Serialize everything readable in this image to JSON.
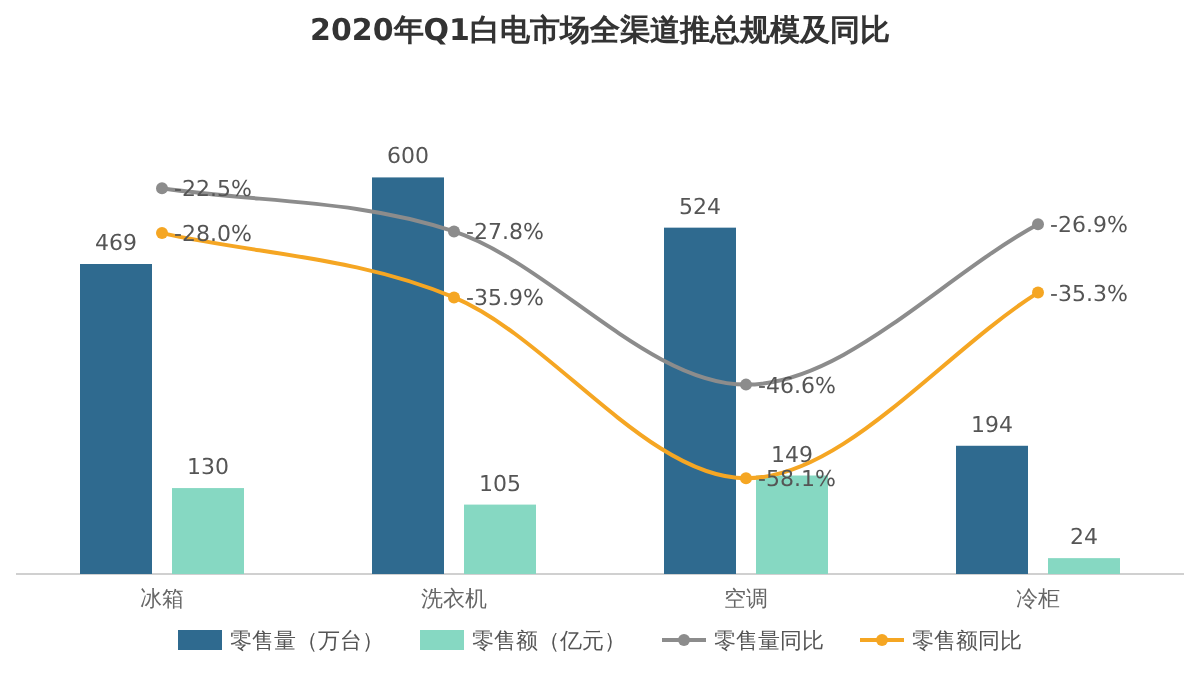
{
  "chart_data": {
    "type": "bar",
    "title": "2020年Q1白电市场全渠道推总规模及同比",
    "categories": [
      "冰箱",
      "洗衣机",
      "空调",
      "冷柜"
    ],
    "series": [
      {
        "name": "零售量（万台）",
        "color": "#2f6a8f",
        "values": [
          469,
          600,
          524,
          194
        ],
        "value_labels": [
          "469",
          "600",
          "524",
          "194"
        ]
      },
      {
        "name": "零售额（亿元）",
        "color": "#86d8c2",
        "values": [
          130,
          105,
          149,
          24
        ],
        "value_labels": [
          "130",
          "105",
          "149",
          "24"
        ]
      },
      {
        "name": "零售量同比",
        "type": "line",
        "axis": "y2",
        "color": "#8c8c8c",
        "marker": "circle",
        "values": [
          -22.5,
          -27.8,
          -46.6,
          -26.9
        ],
        "value_labels": [
          "-22.5%",
          "-27.8%",
          "-46.6%",
          "-26.9%"
        ]
      },
      {
        "name": "零售额同比",
        "type": "line",
        "axis": "y2",
        "color": "#f5a623",
        "marker": "circle",
        "values": [
          -28.0,
          -35.9,
          -58.1,
          -35.3
        ],
        "value_labels": [
          "-28.0%",
          "-35.9%",
          "-58.1%",
          "-35.3%"
        ]
      }
    ],
    "legend": "bottom"
  }
}
